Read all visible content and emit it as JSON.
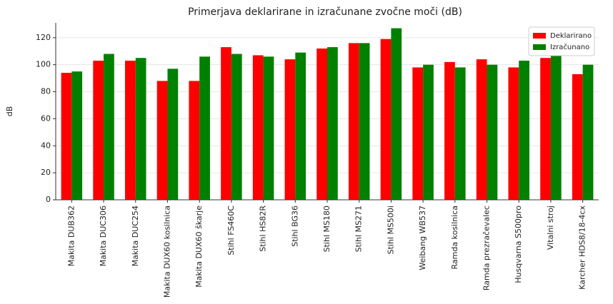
{
  "chart_data": {
    "type": "bar",
    "title": "Primerjava deklarirane in izračunane zvočne moči (dB)",
    "y_label": "dB",
    "categories": [
      "Makita DUB362",
      "Makita DUC306",
      "Makita DUC254",
      "Makita DUX60 kosilnica",
      "Makita DUX60 škarje",
      "Stihl FS460C",
      "Stihl HS82R",
      "Stihl BG36",
      "Stihl MS180",
      "Stihl MS271",
      "Stihl MS500i",
      "Weibang WB537",
      "Ramda kosilnica",
      "Ramda prezračevalec",
      "Husqvarna S500pro",
      "Vitalni stroj",
      "Karcher HDS8/18-4cx"
    ],
    "series": [
      {
        "name": "Deklarirano",
        "color": "#ff0000",
        "values": [
          94,
          103,
          103,
          88,
          88,
          113,
          107,
          104,
          112,
          116,
          119,
          98,
          102,
          104,
          98,
          105,
          93
        ]
      },
      {
        "name": "Izračunano",
        "color": "#008000",
        "values": [
          95,
          108,
          105,
          97,
          106,
          108,
          106,
          109,
          113,
          116,
          127,
          100,
          98,
          100,
          103,
          108,
          100
        ]
      }
    ],
    "ylim": [
      0,
      131
    ],
    "yticks": [
      0,
      20,
      40,
      60,
      80,
      100,
      120
    ],
    "grid": true,
    "legend": "upper right"
  }
}
